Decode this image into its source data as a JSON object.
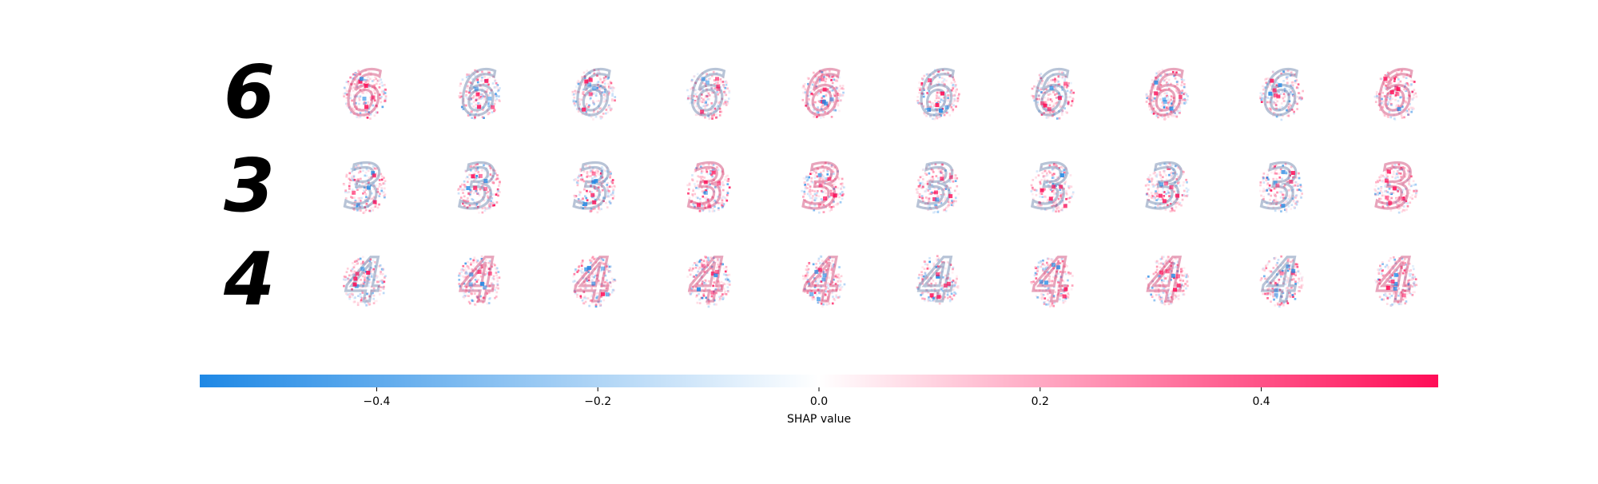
{
  "chart_data": {
    "type": "heatmap",
    "title": "",
    "subtitle": "",
    "description_note": "",
    "rows": [
      {
        "input_digit": "6",
        "outputs": 10
      },
      {
        "input_digit": "3",
        "outputs": 10
      },
      {
        "input_digit": "4",
        "outputs": 10
      }
    ],
    "colorbar": {
      "label": "SHAP value",
      "range": [
        -0.56,
        0.56
      ],
      "ticks": [
        -0.4,
        -0.2,
        0.0,
        0.2,
        0.4
      ],
      "tick_labels": [
        "−0.4",
        "−0.2",
        "0.0",
        "0.2",
        "0.4"
      ],
      "low_color": "#1e88e5",
      "mid_color": "#ffffff",
      "high_color": "#ff0d57"
    },
    "grid": false,
    "legend": "none"
  }
}
